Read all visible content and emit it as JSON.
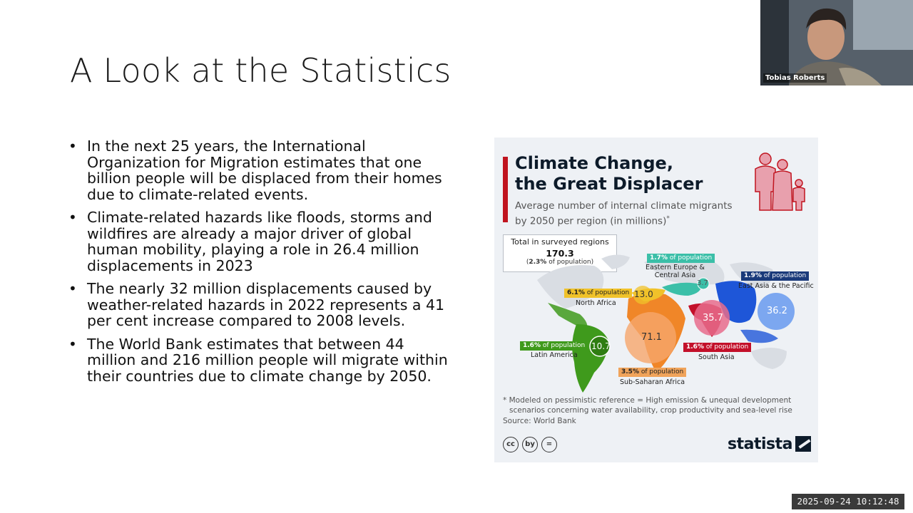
{
  "slide": {
    "title": "A Look at the Statistics",
    "bullets": [
      "In the next 25 years, the International Organization for Migration estimates that one billion people will be displaced from their homes due to climate-related events.",
      "Climate-related hazards like floods, storms and wildfires are already a major driver of global human mobility, playing a role in 26.4 million displacements in 2023",
      "The nearly 32 million displacements caused by weather-related hazards in 2022 represents a 41 per cent increase compared to 2008 levels.",
      "The World Bank estimates that between 44 million and 216 million people will migrate within their countries due to climate change by 2050."
    ]
  },
  "infographic": {
    "title_line1": "Climate Change,",
    "title_line2": "the Great Displacer",
    "subtitle_line1": "Average number of internal climate migrants",
    "subtitle_line2": "by 2050 per region (in millions)",
    "subtitle_mark": "*",
    "total": {
      "label": "Total in surveyed regions",
      "value": "170.3",
      "share_value": "2.3%",
      "share_text": " of population"
    },
    "regions": [
      {
        "name": "Eastern Europe & Central Asia",
        "name_line1": "Eastern Europe &",
        "name_line2": "Central Asia",
        "value": "3.7",
        "share": "1.7%",
        "share_text": " of population",
        "color": "#3bbfa8"
      },
      {
        "name": "East Asia & the Pacific",
        "value": "36.2",
        "share": "1.9%",
        "share_text": " of population",
        "color": "#1e56d8"
      },
      {
        "name": "North Africa",
        "value": "13.0",
        "share": "6.1%",
        "share_text": " of population",
        "color": "#f0c22a"
      },
      {
        "name": "South Asia",
        "value": "35.7",
        "share": "1.6%",
        "share_text": " of population",
        "color": "#c3102a"
      },
      {
        "name": "Latin America",
        "value": "10.7",
        "share": "1.6%",
        "share_text": " of population",
        "color": "#3f9a1c"
      },
      {
        "name": "Sub-Saharan Africa",
        "value": "71.1",
        "share": "3.5%",
        "share_text": " of population",
        "color": "#f07a12"
      }
    ],
    "footnote_line1": "* Modeled on pessimistic reference = High emission & unequal development",
    "footnote_line2": "scenarios concerning water availability, crop productivity and sea-level rise",
    "source": "Source: World Bank",
    "cc_icons": [
      "cc",
      "by",
      "="
    ],
    "brand": "statista"
  },
  "webcam": {
    "participant_name": "Tobias Roberts"
  },
  "timestamp": "2025-09-24  10:12:48"
}
